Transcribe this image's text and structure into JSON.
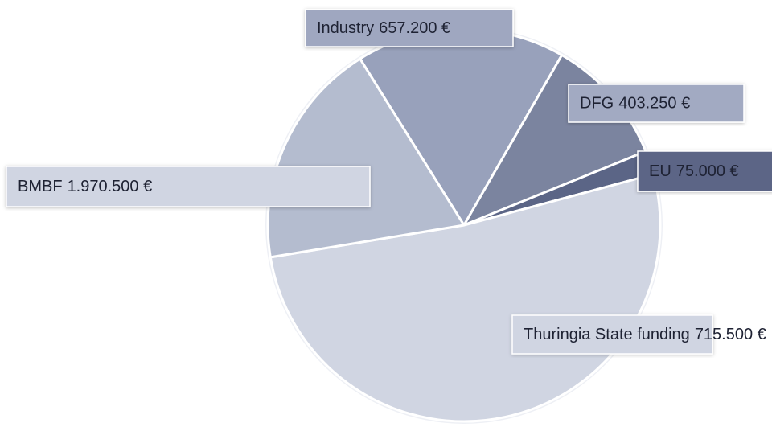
{
  "chart_data": {
    "type": "pie",
    "categories": [
      "Industry",
      "DFG",
      "EU",
      "BMBF",
      "Thuringia State funding"
    ],
    "values": [
      657200,
      403250,
      75000,
      1970500,
      715500
    ],
    "value_labels": [
      "657.200 €",
      "403.250 €",
      "75.000 €",
      "1.970.500 €",
      "715.500 €"
    ],
    "colors": [
      "#98a1bb",
      "#7b849f",
      "#5b6586",
      "#d0d5e2",
      "#b4bccf"
    ]
  }
}
